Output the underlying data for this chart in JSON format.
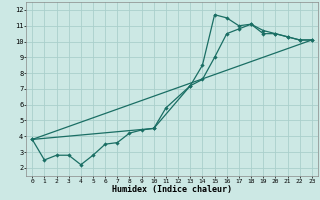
{
  "xlabel": "Humidex (Indice chaleur)",
  "background_color": "#cce8e4",
  "grid_color": "#aacfcc",
  "line_color": "#1a6e64",
  "xlim": [
    -0.5,
    23.5
  ],
  "ylim": [
    1.5,
    12.5
  ],
  "xticks": [
    0,
    1,
    2,
    3,
    4,
    5,
    6,
    7,
    8,
    9,
    10,
    11,
    12,
    13,
    14,
    15,
    16,
    17,
    18,
    19,
    20,
    21,
    22,
    23
  ],
  "yticks": [
    2,
    3,
    4,
    5,
    6,
    7,
    8,
    9,
    10,
    11,
    12
  ],
  "line1_x": [
    0,
    1,
    2,
    3,
    4,
    5,
    6,
    7,
    8,
    9,
    10,
    11,
    13,
    14,
    15,
    16,
    17,
    18,
    19,
    20,
    21,
    22,
    23
  ],
  "line1_y": [
    3.8,
    2.5,
    2.8,
    2.8,
    2.2,
    2.8,
    3.5,
    3.6,
    4.2,
    4.4,
    4.5,
    5.8,
    7.2,
    8.5,
    11.7,
    11.5,
    11.0,
    11.1,
    10.7,
    10.5,
    10.3,
    10.1,
    10.1
  ],
  "line2_x": [
    0,
    10,
    13,
    14,
    15,
    16,
    17,
    18,
    19,
    20,
    21,
    22,
    23
  ],
  "line2_y": [
    3.8,
    4.5,
    7.2,
    7.6,
    9.0,
    10.5,
    10.8,
    11.1,
    10.5,
    10.5,
    10.3,
    10.1,
    10.1
  ],
  "line3_x": [
    0,
    23
  ],
  "line3_y": [
    3.8,
    10.1
  ]
}
